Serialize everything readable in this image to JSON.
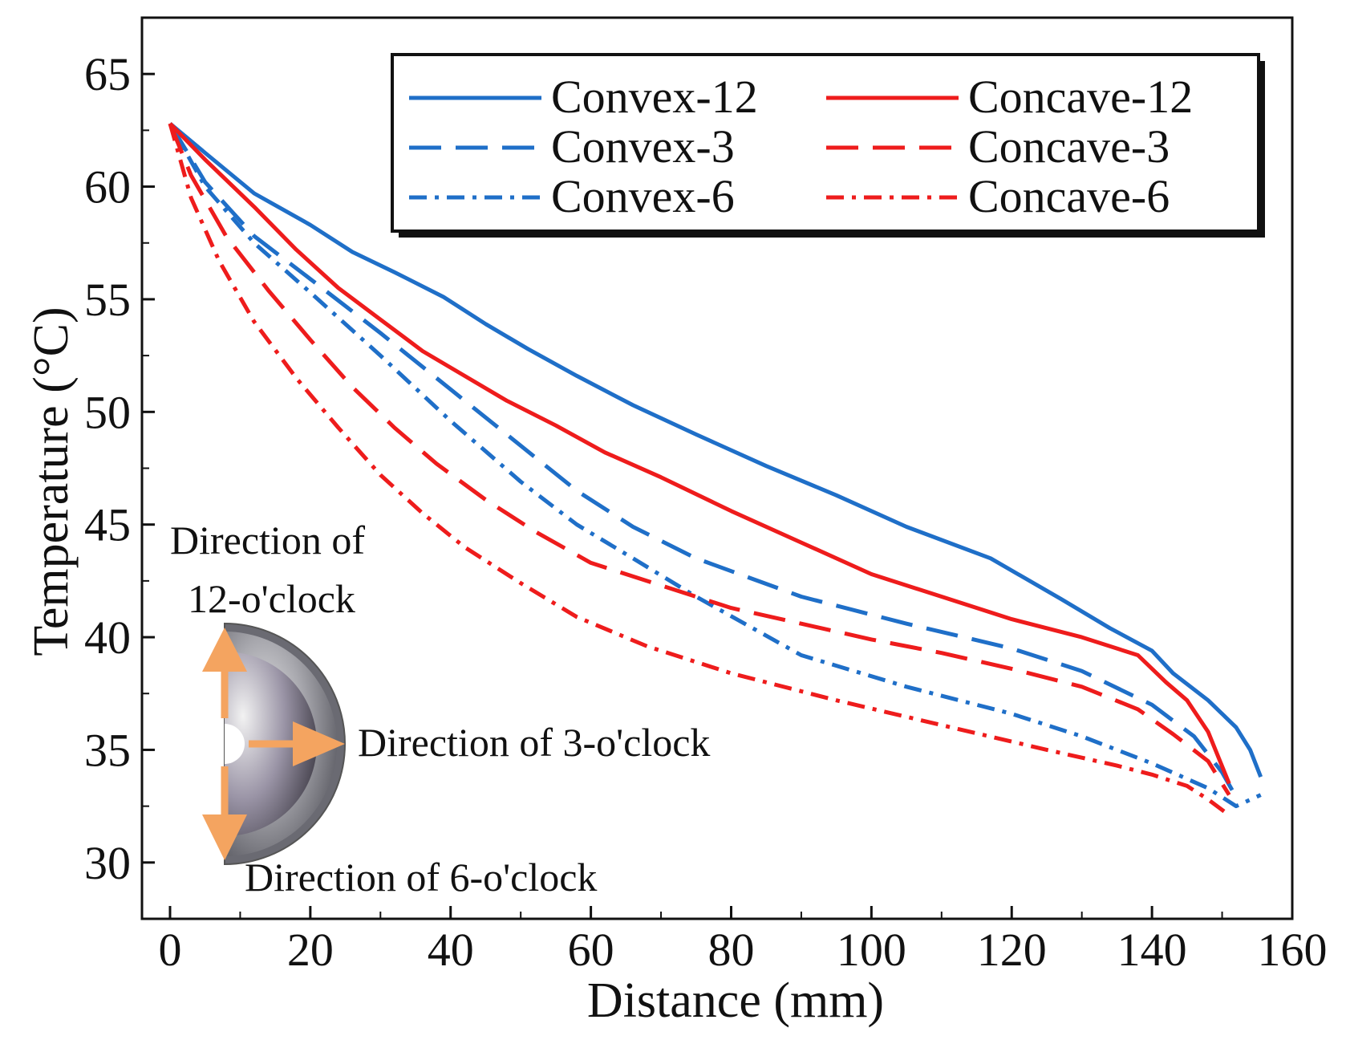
{
  "chart_data": {
    "type": "line",
    "title": "",
    "xlabel": "Distance (mm)",
    "ylabel": "Temperature (°C)",
    "xlim": [
      -4,
      160
    ],
    "ylim": [
      27.5,
      67.5
    ],
    "xticks": [
      0,
      20,
      40,
      60,
      80,
      100,
      120,
      140,
      160
    ],
    "yticks": [
      30,
      35,
      40,
      45,
      50,
      55,
      60,
      65
    ],
    "grid": false,
    "legend_position": "top-right",
    "series": [
      {
        "name": "Convex-12",
        "color": "#1f6fc8",
        "dash": "solid",
        "x": [
          0,
          5,
          12,
          20,
          26,
          32,
          39,
          45,
          51,
          58,
          66,
          75,
          85,
          95,
          105,
          117,
          127,
          134,
          140,
          143,
          148,
          152,
          154,
          155.5
        ],
        "y": [
          62.8,
          61.5,
          59.7,
          58.3,
          57.1,
          56.2,
          55.1,
          53.9,
          52.8,
          51.6,
          50.3,
          49.0,
          47.6,
          46.3,
          44.9,
          43.5,
          41.7,
          40.4,
          39.4,
          38.4,
          37.2,
          36.0,
          35.0,
          33.8
        ]
      },
      {
        "name": "Convex-3",
        "color": "#1f6fc8",
        "dash": "long-dash",
        "x": [
          0,
          5,
          12,
          20,
          30,
          40,
          50,
          58,
          66,
          75,
          90,
          105,
          120,
          130,
          140,
          146,
          150,
          152
        ],
        "y": [
          62.8,
          60.2,
          57.8,
          55.9,
          53.5,
          51.0,
          48.5,
          46.5,
          44.9,
          43.5,
          41.8,
          40.6,
          39.5,
          38.5,
          37.0,
          35.6,
          34.0,
          32.9
        ]
      },
      {
        "name": "Convex-6",
        "color": "#1f6fc8",
        "dash": "dash-dot",
        "x": [
          0,
          5,
          12,
          20,
          30,
          40,
          50,
          58,
          66,
          75,
          90,
          105,
          120,
          130,
          140,
          148,
          152,
          155.5
        ],
        "y": [
          62.8,
          60.0,
          57.5,
          55.3,
          52.5,
          49.6,
          46.9,
          45.0,
          43.5,
          41.8,
          39.2,
          37.8,
          36.6,
          35.6,
          34.4,
          33.3,
          32.5,
          33.0
        ]
      },
      {
        "name": "Concave-12",
        "color": "#ee1c1c",
        "dash": "solid",
        "x": [
          0,
          5,
          12,
          18,
          24,
          30,
          36,
          42,
          48,
          55,
          62,
          70,
          80,
          90,
          100,
          110,
          120,
          130,
          138,
          142,
          145,
          148,
          151
        ],
        "y": [
          62.8,
          61.2,
          59.1,
          57.2,
          55.5,
          54.1,
          52.7,
          51.6,
          50.5,
          49.4,
          48.2,
          47.1,
          45.6,
          44.2,
          42.8,
          41.8,
          40.8,
          40.0,
          39.2,
          38.0,
          37.2,
          35.8,
          33.5
        ]
      },
      {
        "name": "Concave-3",
        "color": "#ee1c1c",
        "dash": "long-dash",
        "x": [
          0,
          3,
          8,
          14,
          20,
          26,
          32,
          38,
          45,
          52,
          60,
          70,
          80,
          90,
          100,
          110,
          120,
          130,
          138,
          143,
          148,
          151
        ],
        "y": [
          62.8,
          60.5,
          57.8,
          55.4,
          53.2,
          51.1,
          49.3,
          47.7,
          46.1,
          44.7,
          43.3,
          42.3,
          41.3,
          40.6,
          39.9,
          39.3,
          38.6,
          37.8,
          36.8,
          35.7,
          34.5,
          33.0
        ]
      },
      {
        "name": "Concave-6",
        "color": "#ee1c1c",
        "dash": "dash-dot",
        "x": [
          0,
          3,
          7,
          12,
          18,
          24,
          30,
          36,
          42,
          50,
          58,
          68,
          80,
          95,
          110,
          125,
          135,
          140,
          145,
          148,
          151
        ],
        "y": [
          62.8,
          59.5,
          56.7,
          54.0,
          51.5,
          49.3,
          47.2,
          45.5,
          44.0,
          42.4,
          40.9,
          39.6,
          38.4,
          37.2,
          36.1,
          35.0,
          34.3,
          33.9,
          33.4,
          32.8,
          32.1
        ]
      }
    ],
    "annotations": [
      "Direction of",
      "12-o'clock",
      "Direction of 3-o'clock",
      "Direction of 6-o'clock"
    ]
  }
}
